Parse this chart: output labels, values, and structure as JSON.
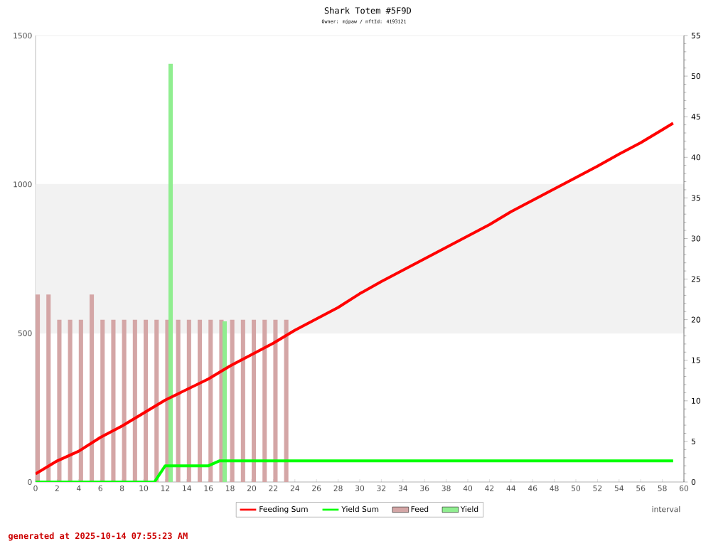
{
  "chart_data": {
    "type": "bar",
    "title": "Shark Totem #5F9D",
    "subtitle": "Owner: mjpaw / nftId: 4193121",
    "xlabel": "interval",
    "annotations": [
      "generated at 2025-10-14 07:55:23 AM"
    ],
    "xlim": [
      0,
      60
    ],
    "xticks": [
      0,
      2,
      4,
      6,
      8,
      10,
      12,
      14,
      16,
      18,
      20,
      22,
      24,
      26,
      28,
      30,
      32,
      34,
      36,
      38,
      40,
      42,
      44,
      46,
      48,
      50,
      52,
      54,
      56,
      58,
      60
    ],
    "ylim": [
      0,
      1500
    ],
    "yticks": [
      0,
      500,
      1000,
      1500
    ],
    "y2lim": [
      0,
      55
    ],
    "y2ticks": [
      0,
      5,
      10,
      15,
      20,
      25,
      30,
      35,
      40,
      45,
      50,
      55
    ],
    "grid": "y",
    "legend": "bottom",
    "bands": [
      {
        "axis": "y",
        "from": 500,
        "to": 1000,
        "color": "#f2f2f2"
      }
    ],
    "series": [
      {
        "name": "Feeding Sum",
        "type": "line",
        "axis": "y2",
        "color": "#ff0000",
        "x": [
          0,
          2,
          4,
          6,
          8,
          10,
          12,
          14,
          16,
          18,
          20,
          22,
          24,
          26,
          28,
          30,
          32,
          34,
          36,
          38,
          40,
          42,
          44,
          46,
          48,
          50,
          52,
          54,
          56,
          58,
          59
        ],
        "values": [
          1.0,
          2.6,
          3.8,
          5.5,
          6.9,
          8.5,
          10.1,
          11.4,
          12.7,
          14.3,
          15.7,
          17.1,
          18.7,
          20.1,
          21.5,
          23.2,
          24.7,
          26.1,
          27.5,
          28.9,
          30.3,
          31.7,
          33.3,
          34.7,
          36.1,
          37.5,
          38.9,
          40.4,
          41.8,
          43.4,
          44.2
        ]
      },
      {
        "name": "Yield Sum",
        "type": "line",
        "axis": "y2",
        "color": "#00ff00",
        "x": [
          0,
          11,
          12,
          16,
          17,
          59
        ],
        "values": [
          0,
          0,
          2,
          2,
          2.6,
          2.6
        ]
      },
      {
        "name": "Feed",
        "color": "#d4a6a6",
        "x": [
          0.2,
          1.2,
          2.2,
          3.2,
          4.2,
          5.2,
          6.2,
          7.2,
          8.2,
          9.2,
          10.2,
          11.2,
          12.2,
          13.2,
          14.2,
          15.2,
          16.2,
          17.2,
          18.2,
          19.2,
          20.2,
          21.2,
          22.2,
          23.2
        ],
        "values": [
          630,
          630,
          545,
          545,
          545,
          630,
          545,
          545,
          545,
          545,
          545,
          545,
          545,
          545,
          545,
          545,
          545,
          545,
          545,
          545,
          545,
          545,
          545,
          545
        ]
      },
      {
        "name": "Yield",
        "color": "#90ee90",
        "x": [
          12.5,
          17.5
        ],
        "values": [
          1405,
          540
        ]
      }
    ]
  }
}
